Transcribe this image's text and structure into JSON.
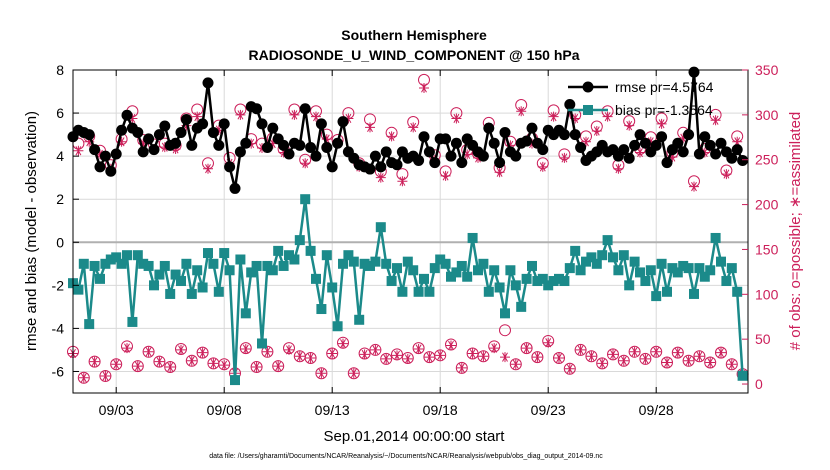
{
  "chart_data": {
    "type": "line",
    "title": "Southern Hemisphere",
    "subtitle": "RADIOSONDE_U_WIND_COMPONENT @ 150 hPa",
    "xlabel": "Sep.01,2014 00:00:00 start",
    "ylabel": "rmse and bias (model - observation)",
    "ylabel_right": "# of obs: o=possible; ∗=assimilated",
    "xlim": [
      0,
      31.25
    ],
    "ylim": [
      -7,
      8
    ],
    "ylim_right": [
      -10,
      350
    ],
    "x_ticks": [
      2,
      7,
      12,
      17,
      22,
      27
    ],
    "x_ticklabels": [
      "09/03",
      "09/08",
      "09/13",
      "09/18",
      "09/23",
      "09/28"
    ],
    "y_ticks": [
      -6,
      -4,
      -2,
      0,
      2,
      4,
      6,
      8
    ],
    "y_ticklabels": [
      "-6",
      "-4",
      "-2",
      "0",
      "2",
      "4",
      "6",
      "8"
    ],
    "y_right_ticks": [
      0,
      50,
      100,
      150,
      200,
      250,
      300,
      350
    ],
    "y_right_ticklabels": [
      "0",
      "50",
      "100",
      "150",
      "200",
      "250",
      "300",
      "350"
    ],
    "grid": true,
    "zero_line": 0,
    "legend_position": "top-right",
    "colors": {
      "rmse": "#000000",
      "bias": "#1b8a8a",
      "obs": "#cc1f5a",
      "grid": "#d9d9d9",
      "zero": "#b0b0b0"
    },
    "series": [
      {
        "name": "rmse pr=4.5764",
        "x": [
          0.0,
          0.25,
          0.5,
          0.75,
          1.0,
          1.25,
          1.5,
          1.75,
          2.0,
          2.25,
          2.5,
          2.75,
          3.0,
          3.25,
          3.5,
          3.75,
          4.0,
          4.25,
          4.5,
          4.75,
          5.0,
          5.25,
          5.5,
          5.75,
          6.0,
          6.25,
          6.5,
          6.75,
          7.0,
          7.25,
          7.5,
          7.75,
          8.0,
          8.25,
          8.5,
          8.75,
          9.0,
          9.25,
          9.5,
          9.75,
          10.0,
          10.25,
          10.5,
          10.75,
          11.0,
          11.25,
          11.5,
          11.75,
          12.0,
          12.25,
          12.5,
          12.75,
          13.0,
          13.25,
          13.5,
          13.75,
          14.0,
          14.25,
          14.5,
          14.75,
          15.0,
          15.25,
          15.5,
          15.75,
          16.0,
          16.25,
          16.5,
          16.75,
          17.0,
          17.25,
          17.5,
          17.75,
          18.0,
          18.25,
          18.5,
          18.75,
          19.0,
          19.25,
          19.5,
          19.75,
          20.0,
          20.25,
          20.5,
          20.75,
          21.0,
          21.25,
          21.5,
          21.75,
          22.0,
          22.25,
          22.5,
          22.75,
          23.0,
          23.25,
          23.5,
          23.75,
          24.0,
          24.25,
          24.5,
          24.75,
          25.0,
          25.25,
          25.5,
          25.75,
          26.0,
          26.25,
          26.5,
          26.75,
          27.0,
          27.25,
          27.5,
          27.75,
          28.0,
          28.25,
          28.5,
          28.75,
          29.0,
          29.25,
          29.5,
          29.75,
          30.0,
          30.25,
          30.5,
          30.75,
          31.0
        ],
        "values": [
          4.9,
          5.2,
          5.1,
          5.0,
          4.3,
          3.5,
          4.0,
          3.3,
          4.1,
          5.2,
          5.9,
          5.3,
          5.1,
          4.2,
          4.8,
          4.3,
          5.0,
          5.4,
          4.5,
          4.6,
          5.1,
          5.7,
          4.5,
          5.3,
          5.5,
          7.4,
          5.1,
          4.5,
          5.5,
          3.5,
          2.5,
          4.2,
          4.6,
          6.3,
          6.2,
          5.5,
          4.4,
          5.3,
          4.8,
          4.5,
          4.1,
          4.6,
          4.5,
          6.2,
          4.4,
          4.0,
          5.5,
          4.4,
          3.5,
          4.6,
          5.6,
          4.2,
          3.9,
          3.6,
          3.5,
          3.4,
          4.0,
          3.5,
          4.2,
          3.7,
          3.6,
          4.2,
          3.9,
          4.0,
          3.8,
          4.9,
          4.2,
          3.7,
          4.8,
          4.8,
          4.0,
          4.6,
          3.7,
          4.8,
          4.5,
          4.2,
          4.0,
          5.3,
          4.6,
          3.7,
          5.1,
          4.2,
          4.0,
          4.6,
          4.7,
          5.3,
          4.6,
          4.3,
          5.2,
          5.0,
          5.2,
          5.0,
          6.4,
          5.0,
          4.4,
          3.8,
          4.0,
          4.2,
          4.5,
          4.2,
          4.3,
          4.0,
          4.3,
          3.9,
          4.5,
          5.0,
          4.6,
          4.2,
          4.5,
          4.9,
          3.7,
          4.3,
          4.6,
          4.2,
          5.0,
          7.9,
          4.1,
          4.9,
          4.5,
          4.1,
          4.6,
          4.2,
          3.9,
          4.3,
          3.8
        ]
      },
      {
        "name": "bias pr=-1.3564",
        "x": [
          0.0,
          0.25,
          0.5,
          0.75,
          1.0,
          1.25,
          1.5,
          1.75,
          2.0,
          2.25,
          2.5,
          2.75,
          3.0,
          3.25,
          3.5,
          3.75,
          4.0,
          4.25,
          4.5,
          4.75,
          5.0,
          5.25,
          5.5,
          5.75,
          6.0,
          6.25,
          6.5,
          6.75,
          7.0,
          7.25,
          7.5,
          7.75,
          8.0,
          8.25,
          8.5,
          8.75,
          9.0,
          9.25,
          9.5,
          9.75,
          10.0,
          10.25,
          10.5,
          10.75,
          11.0,
          11.25,
          11.5,
          11.75,
          12.0,
          12.25,
          12.5,
          12.75,
          13.0,
          13.25,
          13.5,
          13.75,
          14.0,
          14.25,
          14.5,
          14.75,
          15.0,
          15.25,
          15.5,
          15.75,
          16.0,
          16.25,
          16.5,
          16.75,
          17.0,
          17.25,
          17.5,
          17.75,
          18.0,
          18.25,
          18.5,
          18.75,
          19.0,
          19.25,
          19.5,
          19.75,
          20.0,
          20.25,
          20.5,
          20.75,
          21.0,
          21.25,
          21.5,
          21.75,
          22.0,
          22.25,
          22.5,
          22.75,
          23.0,
          23.25,
          23.5,
          23.75,
          24.0,
          24.25,
          24.5,
          24.75,
          25.0,
          25.25,
          25.5,
          25.75,
          26.0,
          26.25,
          26.5,
          26.75,
          27.0,
          27.25,
          27.5,
          27.75,
          28.0,
          28.25,
          28.5,
          28.75,
          29.0,
          29.25,
          29.5,
          29.75,
          30.0,
          30.25,
          30.5,
          30.75,
          31.0
        ],
        "values": [
          -1.9,
          -2.2,
          -1.0,
          -3.8,
          -1.1,
          -1.7,
          -1.0,
          -0.8,
          -0.7,
          -1.0,
          -0.6,
          -3.7,
          -0.6,
          -1.0,
          -1.1,
          -2.0,
          -1.5,
          -1.1,
          -2.4,
          -1.5,
          -1.8,
          -1.0,
          -2.4,
          -1.3,
          -2.1,
          -0.5,
          -1.0,
          -2.3,
          -0.5,
          -1.3,
          -6.4,
          -0.8,
          -3.3,
          -1.4,
          -1.1,
          -4.7,
          -1.1,
          -1.3,
          -0.4,
          -1.1,
          -0.6,
          -0.8,
          0.1,
          2.0,
          -0.4,
          -1.7,
          -3.1,
          -0.6,
          -2.1,
          -3.9,
          -1.0,
          -0.6,
          -0.9,
          -3.6,
          -1.0,
          -1.1,
          -0.9,
          0.7,
          -1.0,
          -1.8,
          -1.2,
          -2.3,
          -0.9,
          -1.3,
          -2.3,
          -1.7,
          -2.3,
          -1.2,
          -0.8,
          -1.0,
          -1.6,
          -1.4,
          -1.1,
          -1.6,
          0.2,
          -1.3,
          -1.0,
          -2.3,
          -1.3,
          -2.1,
          -3.3,
          -1.3,
          -2.0,
          -3.0,
          -1.7,
          -1.1,
          -1.8,
          -1.7,
          -2.0,
          -1.8,
          -1.7,
          -1.8,
          -1.2,
          -0.4,
          -1.3,
          -0.9,
          -0.7,
          -1.0,
          -0.6,
          0.1,
          -0.7,
          -1.3,
          -0.6,
          -2.0,
          -0.9,
          -1.4,
          -1.8,
          -1.3,
          -2.5,
          -1.0,
          -2.3,
          -1.2,
          -1.4,
          -1.1,
          -1.2,
          -2.4,
          -1.2,
          -1.6,
          -1.3,
          0.2,
          -0.9,
          -1.8,
          -1.2,
          -2.3,
          -6.2
        ]
      }
    ],
    "obs_possible_x": [
      0.0,
      0.25,
      0.5,
      0.75,
      1.0,
      1.25,
      1.5,
      1.75,
      2.0,
      2.25,
      2.5,
      2.75,
      3.0,
      3.25,
      3.5,
      3.75,
      4.0,
      4.25,
      4.5,
      4.75,
      5.0,
      5.25,
      5.5,
      5.75,
      6.0,
      6.25,
      6.5,
      6.75,
      7.0,
      7.25,
      7.5,
      7.75,
      8.0,
      8.25,
      8.5,
      8.75,
      9.0,
      9.25,
      9.5,
      9.75,
      10.0,
      10.25,
      10.5,
      10.75,
      11.0,
      11.25,
      11.5,
      11.75,
      12.0,
      12.25,
      12.5,
      12.75,
      13.0,
      13.25,
      13.5,
      13.75,
      14.0,
      14.25,
      14.5,
      14.75,
      15.0,
      15.25,
      15.5,
      15.75,
      16.0,
      16.25,
      16.5,
      16.75,
      17.0,
      17.25,
      17.5,
      17.75,
      18.0,
      18.25,
      18.5,
      18.75,
      19.0,
      19.25,
      19.5,
      19.75,
      20.0,
      20.25,
      20.5,
      20.75,
      21.0,
      21.25,
      21.5,
      21.75,
      22.0,
      22.25,
      22.5,
      22.75,
      23.0,
      23.25,
      23.5,
      23.75,
      24.0,
      24.25,
      24.5,
      24.75,
      25.0,
      25.25,
      25.5,
      25.75,
      26.0,
      26.25,
      26.5,
      26.75,
      27.0,
      27.25,
      27.5,
      27.75,
      28.0,
      28.25,
      28.5,
      28.75,
      29.0,
      29.25,
      29.5,
      29.75,
      30.0,
      30.25,
      30.5,
      30.75,
      31.0
    ],
    "obs_possible": [
      36,
      268,
      7,
      276,
      25,
      260,
      9,
      244,
      22,
      273,
      42,
      304,
      20,
      272,
      36,
      267,
      25,
      268,
      19,
      266,
      39,
      296,
      26,
      306,
      35,
      246,
      23,
      288,
      22,
      252,
      12,
      306,
      40,
      273,
      19,
      268,
      36,
      274,
      20,
      262,
      40,
      306,
      31,
      250,
      29,
      304,
      12,
      278,
      34,
      272,
      46,
      302,
      12,
      246,
      34,
      295,
      38,
      237,
      28,
      280,
      33,
      234,
      29,
      292,
      40,
      339,
      30,
      255,
      32,
      237,
      44,
      302,
      18,
      261,
      34,
      257,
      31,
      291,
      42,
      241,
      60,
      270,
      22,
      311,
      40,
      274,
      30,
      246,
      48,
      305,
      29,
      256,
      17,
      300,
      38,
      276,
      31,
      287,
      23,
      304,
      33,
      244,
      26,
      293,
      36,
      262,
      28,
      275,
      36,
      296,
      24,
      258,
      35,
      280,
      26,
      226,
      31,
      262,
      24,
      300,
      35,
      238,
      22,
      276,
      11
    ],
    "obs_assimilated_x": [
      0.0,
      0.25,
      0.5,
      0.75,
      1.0,
      1.25,
      1.5,
      1.75,
      2.0,
      2.25,
      2.5,
      2.75,
      3.0,
      3.25,
      3.5,
      3.75,
      4.0,
      4.25,
      4.5,
      4.75,
      5.0,
      5.25,
      5.5,
      5.75,
      6.0,
      6.25,
      6.5,
      6.75,
      7.0,
      7.25,
      7.5,
      7.75,
      8.0,
      8.25,
      8.5,
      8.75,
      9.0,
      9.25,
      9.5,
      9.75,
      10.0,
      10.25,
      10.5,
      10.75,
      11.0,
      11.25,
      11.5,
      11.75,
      12.0,
      12.25,
      12.5,
      12.75,
      13.0,
      13.25,
      13.5,
      13.75,
      14.0,
      14.25,
      14.5,
      14.75,
      15.0,
      15.25,
      15.5,
      15.75,
      16.0,
      16.25,
      16.5,
      16.75,
      17.0,
      17.25,
      17.5,
      17.75,
      18.0,
      18.25,
      18.5,
      18.75,
      19.0,
      19.25,
      19.5,
      19.75,
      20.0,
      20.25,
      20.5,
      20.75,
      21.0,
      21.25,
      21.5,
      21.75,
      22.0,
      22.25,
      22.5,
      22.75,
      23.0,
      23.25,
      23.5,
      23.75,
      24.0,
      24.25,
      24.5,
      24.75,
      25.0,
      25.25,
      25.5,
      25.75,
      26.0,
      26.25,
      26.5,
      26.75,
      27.0,
      27.25,
      27.5,
      27.75,
      28.0,
      28.25,
      28.5,
      28.75,
      29.0,
      29.25,
      29.5,
      29.75,
      30.0,
      30.25,
      30.5,
      30.75,
      31.0
    ],
    "obs_assimilated": [
      34,
      260,
      7,
      270,
      25,
      256,
      9,
      240,
      22,
      270,
      40,
      296,
      20,
      268,
      36,
      262,
      25,
      264,
      19,
      262,
      38,
      288,
      26,
      298,
      35,
      240,
      23,
      283,
      21,
      246,
      12,
      300,
      39,
      268,
      19,
      263,
      36,
      268,
      20,
      258,
      38,
      300,
      31,
      246,
      29,
      298,
      12,
      273,
      34,
      268,
      45,
      296,
      12,
      242,
      33,
      286,
      38,
      230,
      28,
      276,
      32,
      226,
      28,
      286,
      39,
      330,
      30,
      250,
      32,
      232,
      43,
      296,
      18,
      256,
      34,
      252,
      31,
      286,
      40,
      236,
      30,
      266,
      22,
      304,
      40,
      268,
      30,
      242,
      46,
      298,
      29,
      252,
      17,
      296,
      38,
      270,
      31,
      282,
      23,
      298,
      33,
      240,
      26,
      288,
      36,
      258,
      28,
      270,
      36,
      290,
      24,
      253,
      35,
      274,
      26,
      220,
      31,
      258,
      24,
      294,
      35,
      234,
      22,
      270,
      11
    ]
  },
  "footer": {
    "data_file": "data file: /Users/gharamti/Documents/NCAR/Reanalysis/~/Documents/NCAR/Reanalysis/webpub/obs_diag_output_2014-09.nc"
  }
}
